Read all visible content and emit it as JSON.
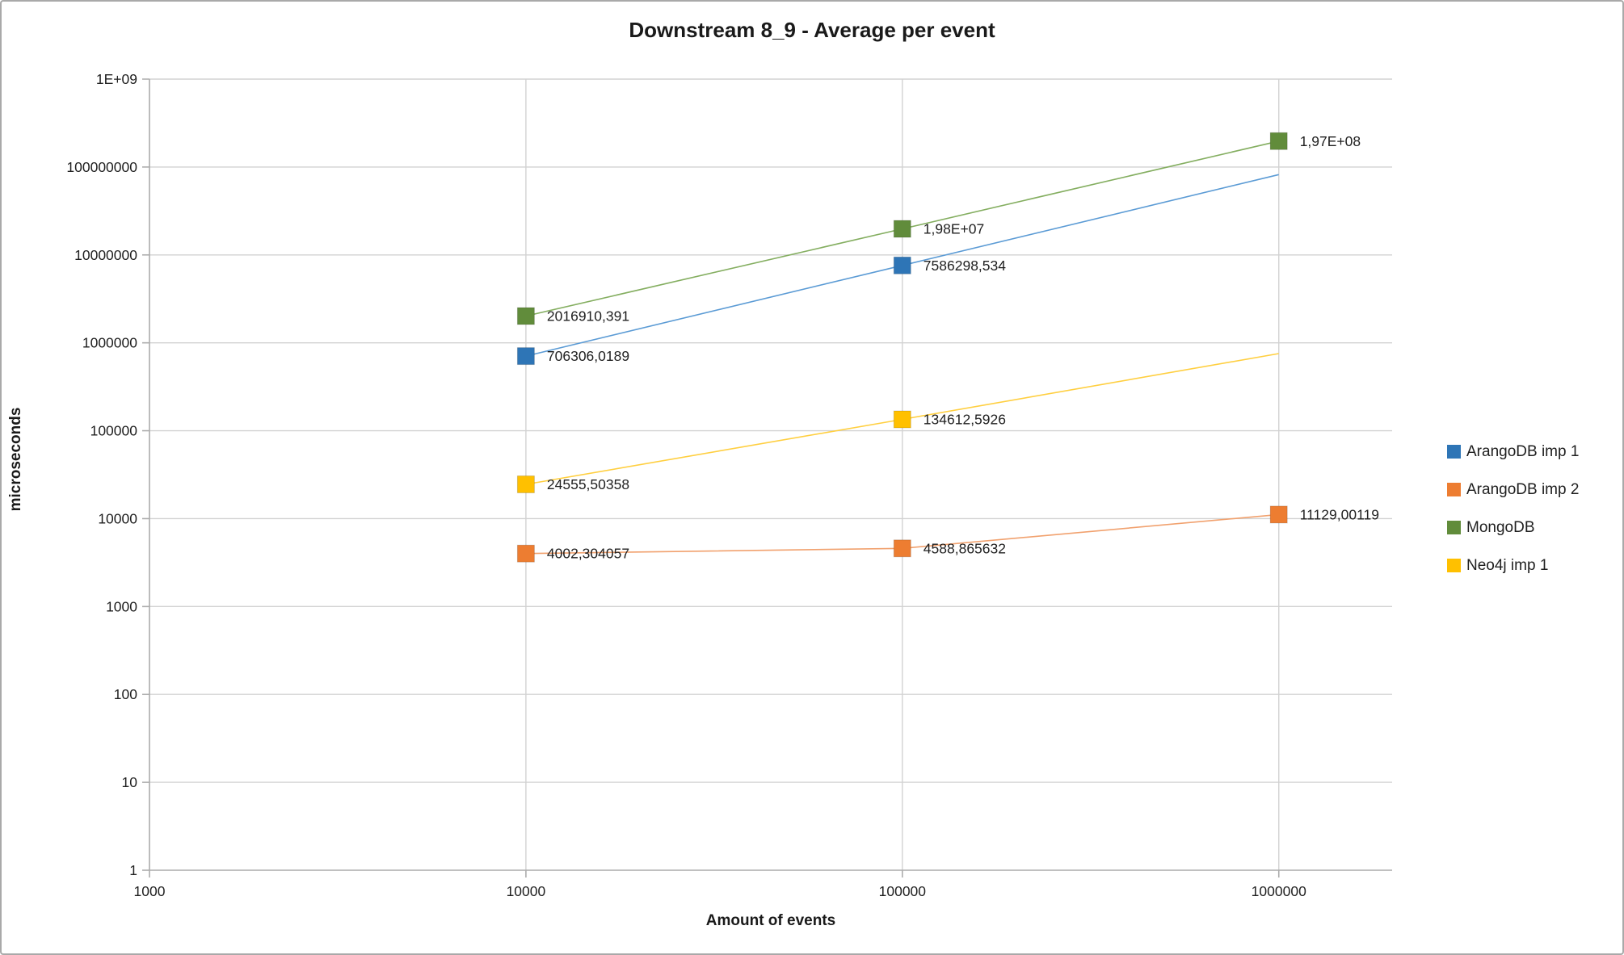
{
  "title": "Downstream 8_9 - Average per event",
  "x_axis": {
    "title": "Amount of events",
    "scale": "log",
    "min": 1000,
    "max": 2000000,
    "tick_values": [
      1000,
      10000,
      100000,
      1000000
    ],
    "tick_labels": [
      "1000",
      "10000",
      "100000",
      "1000000"
    ]
  },
  "y_axis": {
    "title": "microseconds",
    "scale": "log",
    "min": 1,
    "max": 1000000000,
    "tick_values": [
      1,
      10,
      100,
      1000,
      10000,
      100000,
      1000000,
      10000000,
      100000000,
      1000000000
    ],
    "tick_labels": [
      "1",
      "10",
      "100",
      "1000",
      "10000",
      "100000",
      "1000000",
      "10000000",
      "100000000",
      "1E+09"
    ]
  },
  "colors": {
    "gridline": "#d2d2d2",
    "axis": "#acacac",
    "tick": "#acacac",
    "text": "#1f1f1f"
  },
  "chart_data": {
    "type": "line",
    "title": "Downstream 8_9 - Average per event",
    "xlabel": "Amount of events",
    "ylabel": "microseconds",
    "x_range_log": [
      1000,
      2000000
    ],
    "y_range_log": [
      1,
      1000000000
    ],
    "grid": true,
    "legend_position": "right",
    "categories": [
      10000,
      100000,
      1000000
    ],
    "series": [
      {
        "name": "ArangoDB imp 1",
        "marker_color": "#2e75b6",
        "line_color": "#5b9bd5",
        "points": [
          {
            "x": 10000,
            "y": 706306.0189,
            "label": "706306,0189",
            "marker": true
          },
          {
            "x": 100000,
            "y": 7586298.534,
            "label": "7586298,534",
            "marker": true
          },
          {
            "x": 1000000,
            "y": 82000000,
            "label": null,
            "marker": false,
            "estimated_from_line_end": true
          }
        ]
      },
      {
        "name": "ArangoDB imp 2",
        "marker_color": "#ed7d31",
        "line_color": "#f1a16e",
        "points": [
          {
            "x": 10000,
            "y": 4002.304057,
            "label": "4002,304057",
            "marker": true
          },
          {
            "x": 100000,
            "y": 4588.865632,
            "label": "4588,865632",
            "marker": true
          },
          {
            "x": 1000000,
            "y": 11129.00119,
            "label": "11129,00119",
            "marker": true
          }
        ]
      },
      {
        "name": "MongoDB",
        "marker_color": "#618c3b",
        "line_color": "#84ae60",
        "points": [
          {
            "x": 10000,
            "y": 2016910.391,
            "label": "2016910,391",
            "marker": true
          },
          {
            "x": 100000,
            "y": 19800000,
            "label": "1,98E+07",
            "marker": true
          },
          {
            "x": 1000000,
            "y": 197000000,
            "label": "1,97E+08",
            "marker": true
          }
        ]
      },
      {
        "name": "Neo4j imp 1",
        "marker_color": "#ffc000",
        "line_color": "#ffcf40",
        "points": [
          {
            "x": 10000,
            "y": 24555.50358,
            "label": "24555,50358",
            "marker": true
          },
          {
            "x": 100000,
            "y": 134612.5926,
            "label": "134612,5926",
            "marker": true
          },
          {
            "x": 1000000,
            "y": 755000,
            "label": null,
            "marker": false,
            "estimated_from_line_end": true
          }
        ]
      }
    ]
  }
}
